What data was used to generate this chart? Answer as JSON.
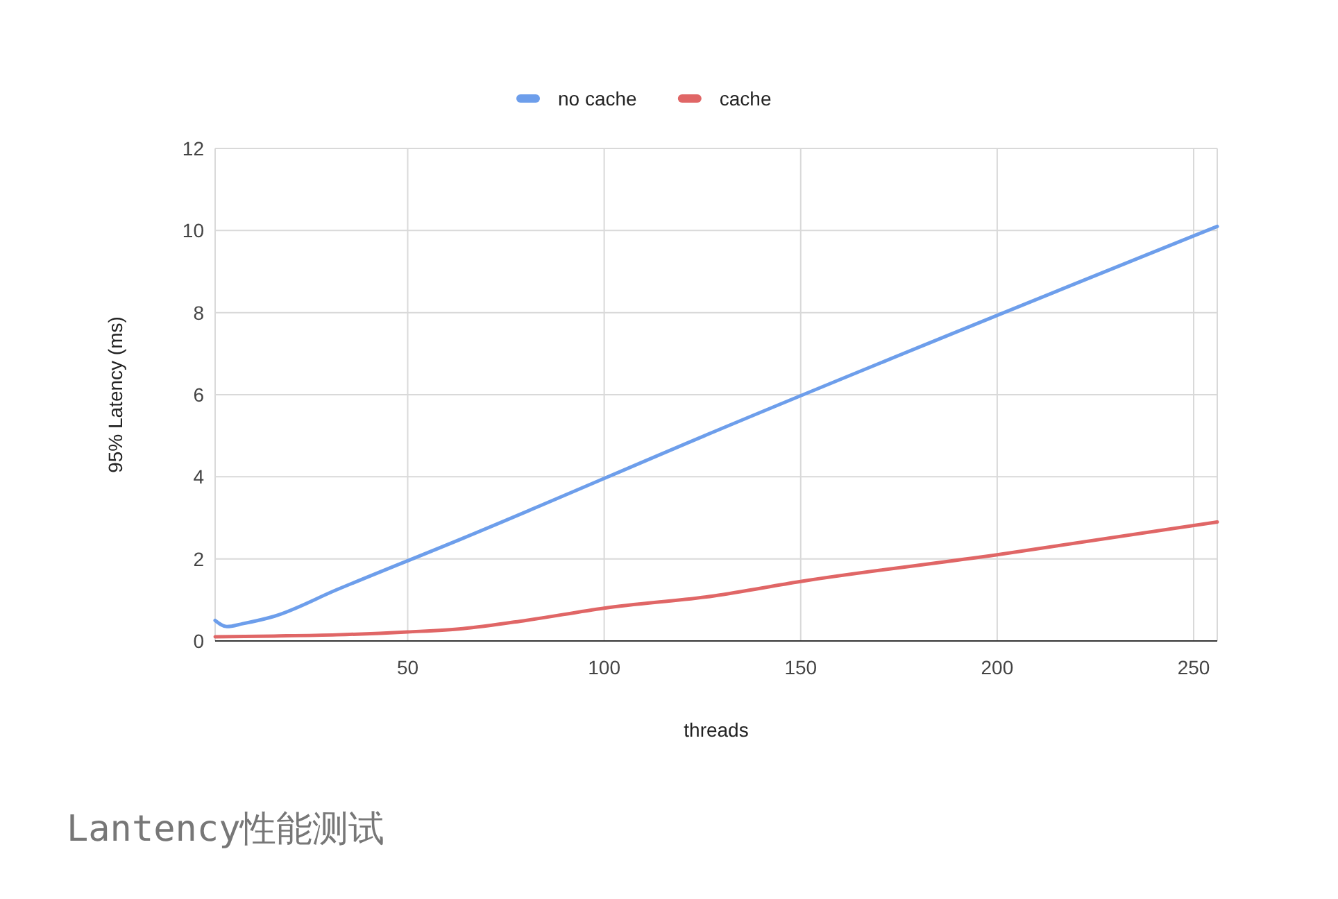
{
  "chart_data": {
    "type": "line",
    "xlabel": "threads",
    "ylabel": "95% Latency (ms)",
    "annotations": [
      "Lantency性能测试"
    ],
    "series": [
      {
        "name": "no cache",
        "color": "#6d9eeb",
        "x": [
          1,
          4,
          8,
          16,
          32,
          64,
          128,
          256
        ],
        "values": [
          0.5,
          0.35,
          0.42,
          0.6,
          1.25,
          2.5,
          5.1,
          10.1
        ]
      },
      {
        "name": "cache",
        "color": "#e06666",
        "x": [
          1,
          16,
          32,
          50,
          64,
          80,
          100,
          128,
          150,
          200,
          256
        ],
        "values": [
          0.1,
          0.12,
          0.15,
          0.22,
          0.3,
          0.5,
          0.8,
          1.1,
          1.45,
          2.1,
          2.9
        ]
      }
    ],
    "xlim": [
      1,
      256
    ],
    "xticks": [
      50,
      100,
      150,
      200,
      250
    ],
    "ylim": [
      0,
      12
    ],
    "yticks": [
      0,
      2,
      4,
      6,
      8,
      10,
      12
    ],
    "grid": true,
    "legend": "top",
    "line_style": "solid",
    "marker": "none"
  }
}
